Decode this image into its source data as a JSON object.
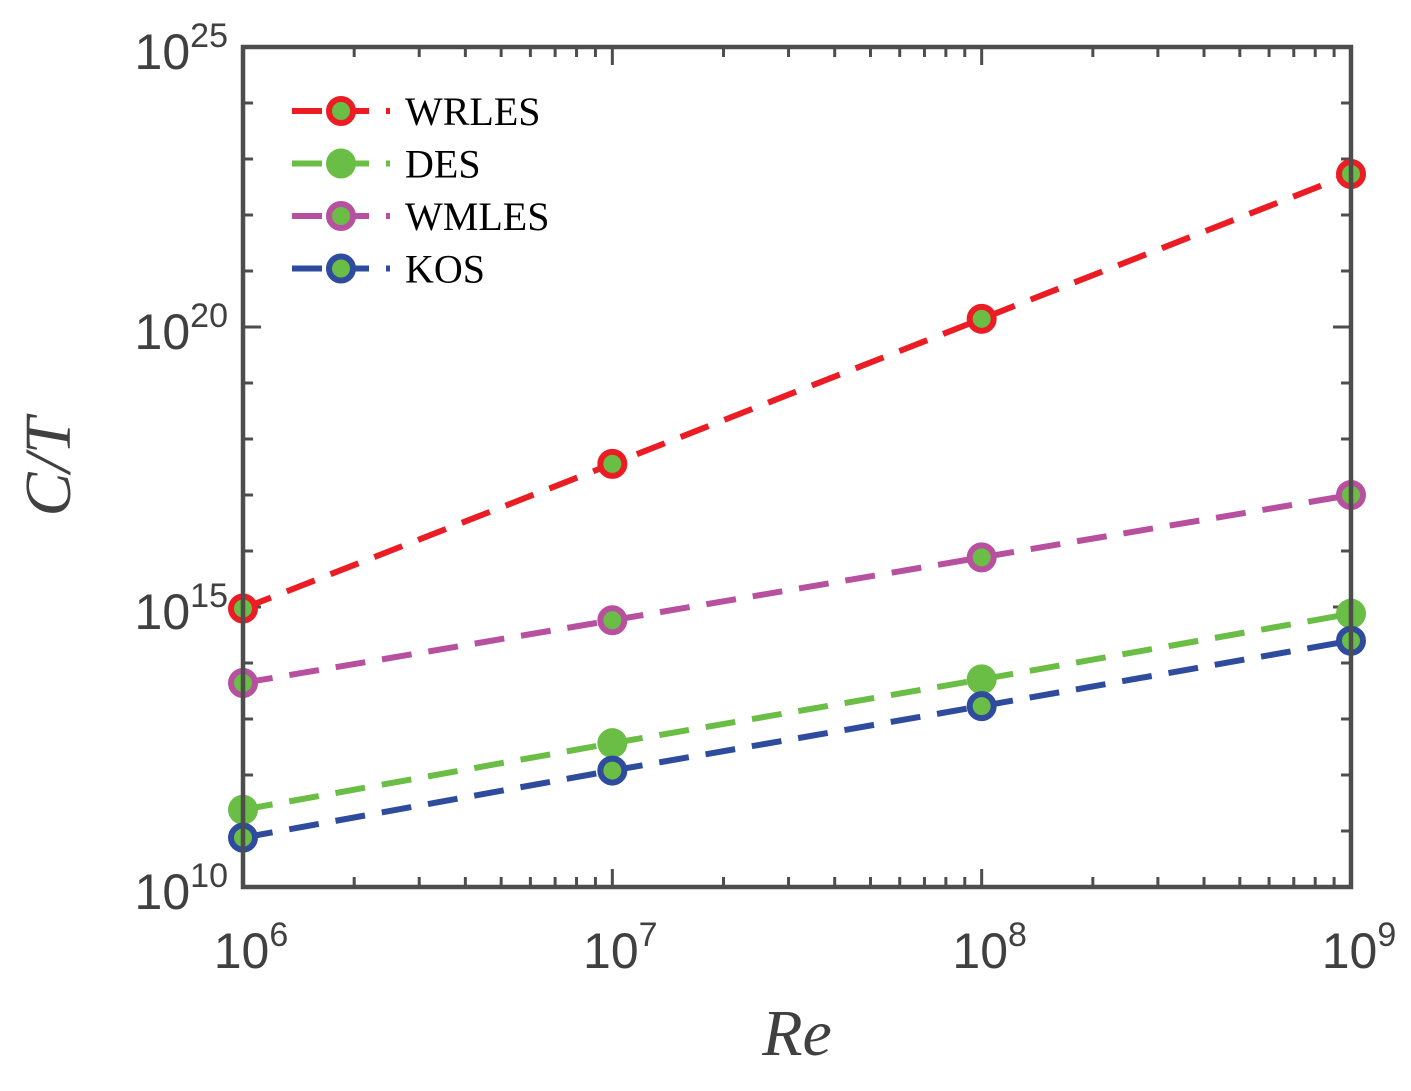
{
  "chart_data": {
    "type": "line",
    "x_scale": "log",
    "y_scale": "log",
    "xlabel": "Re",
    "ylabel": "C/T",
    "x_log_range": [
      6,
      9
    ],
    "y_log_range": [
      10,
      25
    ],
    "x_ticks": [
      {
        "base": "10",
        "exp": "6",
        "log": 6
      },
      {
        "base": "10",
        "exp": "7",
        "log": 7
      },
      {
        "base": "10",
        "exp": "8",
        "log": 8
      },
      {
        "base": "10",
        "exp": "9",
        "log": 9
      }
    ],
    "y_ticks": [
      {
        "base": "10",
        "exp": "10",
        "log": 10
      },
      {
        "base": "10",
        "exp": "15",
        "log": 15
      },
      {
        "base": "10",
        "exp": "20",
        "log": 20
      },
      {
        "base": "10",
        "exp": "25",
        "log": 25
      }
    ],
    "x": [
      1000000.0,
      10000000.0,
      100000000.0,
      1000000000.0
    ],
    "series": [
      {
        "name": "WRLES",
        "color": "#ec1c24",
        "marker_fill": "#6abd45",
        "marker_style": "ring",
        "values": [
          940000000000000.0,
          3.6e+17,
          1.4e+20,
          5.4e+22
        ]
      },
      {
        "name": "DES",
        "color": "#6abd45",
        "marker_fill": "#6abd45",
        "marker_style": "filled",
        "values": [
          240000000000.0,
          3700000000000.0,
          51000000000000.0,
          760000000000000.0
        ]
      },
      {
        "name": "WMLES",
        "color": "#b7519f",
        "marker_fill": "#6abd45",
        "marker_style": "ring",
        "values": [
          44000000000000.0,
          580000000000000.0,
          7700000000000000.0,
          1e+17
        ]
      },
      {
        "name": "KOS",
        "color": "#2e4b9e",
        "marker_fill": "#6abd45",
        "marker_style": "ring",
        "values": [
          76000000000.0,
          1200000000000.0,
          17000000000000.0,
          250000000000000.0
        ]
      }
    ],
    "legend_position": "top-left",
    "grid": false
  }
}
